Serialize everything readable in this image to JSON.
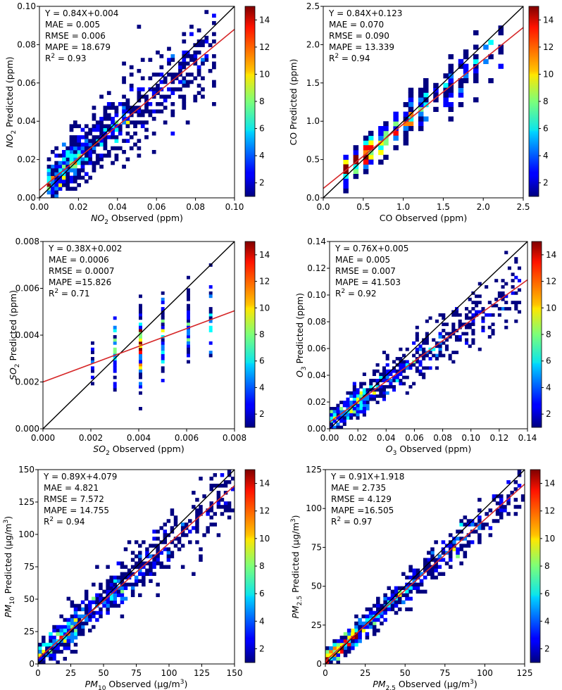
{
  "figure": {
    "colorbar": {
      "ticks": [
        2,
        4,
        6,
        8,
        10,
        12,
        14
      ],
      "min": 1,
      "max": 15,
      "colormap": "jet"
    },
    "colors": {
      "identity_line": "#000000",
      "fit_line": "#d62728",
      "frame": "#000000"
    }
  },
  "chart_data": [
    {
      "id": "no2",
      "type": "heatmap",
      "title": "",
      "xlabel": {
        "sym": "NO",
        "sub": "2",
        "rest": " Observed (ppm)"
      },
      "ylabel": {
        "sym": "NO",
        "sub": "2",
        "rest": " Predicted (ppm)"
      },
      "xlim": [
        0,
        0.1
      ],
      "ylim": [
        0,
        0.1
      ],
      "xticks": [
        "0.00",
        "0.02",
        "0.04",
        "0.06",
        "0.08",
        "0.10"
      ],
      "yticks": [
        "0.00",
        "0.02",
        "0.04",
        "0.06",
        "0.08",
        "0.10"
      ],
      "fit": {
        "slope": 0.84,
        "intercept": 0.004
      },
      "stats": [
        "Y = 0.84X+0.004",
        "MAE = 0.005",
        "RMSE = 0.006",
        "MAPE = 18.679",
        "R2 = 0.93"
      ],
      "density": {
        "x_range": [
          0.005,
          0.09
        ],
        "spread": 0.009,
        "count": 700,
        "bins": 52,
        "peak_x": 0.02
      }
    },
    {
      "id": "co",
      "type": "heatmap",
      "title": "",
      "xlabel": {
        "sym": "",
        "sub": "",
        "rest": "CO Observed (ppm)"
      },
      "ylabel": {
        "sym": "",
        "sub": "",
        "rest": "CO Predicted (ppm)"
      },
      "xlim": [
        0,
        2.5
      ],
      "ylim": [
        0,
        2.5
      ],
      "xticks": [
        "0.0",
        "0.5",
        "1.0",
        "1.5",
        "2.0",
        "2.5"
      ],
      "yticks": [
        "0.0",
        "0.5",
        "1.0",
        "1.5",
        "2.0",
        "2.5"
      ],
      "fit": {
        "slope": 0.84,
        "intercept": 0.123
      },
      "stats": [
        "Y = 0.84X+0.123",
        "MAE = 0.070",
        "RMSE = 0.090",
        "MAPE = 13.339",
        "R2 = 0.94"
      ],
      "density": {
        "x_range": [
          0.25,
          2.2
        ],
        "spread": 0.12,
        "count": 380,
        "bins": 40,
        "peak_x": 0.6,
        "discrete_x": 0.1
      }
    },
    {
      "id": "so2",
      "type": "heatmap",
      "title": "",
      "xlabel": {
        "sym": "SO",
        "sub": "2",
        "rest": " Observed (ppm)"
      },
      "ylabel": {
        "sym": "SO",
        "sub": "2",
        "rest": " Predicted (ppm)"
      },
      "xlim": [
        0,
        0.008
      ],
      "ylim": [
        0,
        0.008
      ],
      "xticks": [
        "0.000",
        "0.002",
        "0.004",
        "0.006",
        "0.008"
      ],
      "yticks": [
        "0.000",
        "0.002",
        "0.004",
        "0.006",
        "0.008"
      ],
      "fit": {
        "slope": 0.38,
        "intercept": 0.002
      },
      "stats": [
        "Y = 0.38X+0.002",
        "MAE = 0.0006",
        "RMSE = 0.0007",
        "MAPE =15.826",
        "R2 = 0.71"
      ],
      "density": {
        "x_range": [
          0.002,
          0.008
        ],
        "spread": 0.0007,
        "count": 300,
        "bins": 60,
        "peak_x": 0.004,
        "discrete_x": 0.001
      }
    },
    {
      "id": "o3",
      "type": "heatmap",
      "title": "",
      "xlabel": {
        "sym": "O",
        "sub": "3",
        "rest": " Observed (ppm)"
      },
      "ylabel": {
        "sym": "O",
        "sub": "3",
        "rest": " Predicted (ppm)"
      },
      "xlim": [
        0,
        0.14
      ],
      "ylim": [
        0,
        0.14
      ],
      "xticks": [
        "0.00",
        "0.02",
        "0.04",
        "0.06",
        "0.08",
        "0.10",
        "0.12",
        "0.14"
      ],
      "yticks": [
        "0.00",
        "0.02",
        "0.04",
        "0.06",
        "0.08",
        "0.10",
        "0.12",
        "0.14"
      ],
      "fit": {
        "slope": 0.76,
        "intercept": 0.005
      },
      "stats": [
        "Y = 0.76X+0.005",
        "MAE = 0.005",
        "RMSE = 0.007",
        "MAPE = 41.503",
        "R2 = 0.92"
      ],
      "density": {
        "x_range": [
          0.002,
          0.135
        ],
        "spread": 0.008,
        "count": 650,
        "bins": 60,
        "peak_x": 0.025
      }
    },
    {
      "id": "pm10",
      "type": "heatmap",
      "title": "",
      "xlabel": {
        "sym": "PM",
        "sub": "10",
        "rest": " Observed (μg/m",
        "sup": "3",
        "close": ")"
      },
      "ylabel": {
        "sym": "PM",
        "sub": "10",
        "rest": " Predicted (μg/m",
        "sup": "3",
        "close": ")"
      },
      "xlim": [
        0,
        150
      ],
      "ylim": [
        0,
        150
      ],
      "xticks": [
        "0",
        "25",
        "50",
        "75",
        "100",
        "125",
        "150"
      ],
      "yticks": [
        "0",
        "25",
        "50",
        "75",
        "100",
        "125",
        "150"
      ],
      "fit": {
        "slope": 0.89,
        "intercept": 4.079
      },
      "stats": [
        "Y = 0.89X+4.079",
        "MAE = 4.821",
        "RMSE = 7.572",
        "MAPE = 14.755",
        "R2 = 0.94"
      ],
      "density": {
        "x_range": [
          2,
          148
        ],
        "spread": 9,
        "count": 650,
        "bins": 55,
        "peak_x": 30
      }
    },
    {
      "id": "pm25",
      "type": "heatmap",
      "title": "",
      "xlabel": {
        "sym": "PM",
        "sub": "2.5",
        "rest": " Observed (μg/m",
        "sup": "3",
        "close": ")"
      },
      "ylabel": {
        "sym": "PM",
        "sub": "2.5",
        "rest": " Predicted (μg/m",
        "sup": "3",
        "close": ")"
      },
      "xlim": [
        0,
        125
      ],
      "ylim": [
        0,
        125
      ],
      "xticks": [
        "0",
        "25",
        "50",
        "75",
        "100",
        "125"
      ],
      "yticks": [
        "0",
        "25",
        "50",
        "75",
        "100",
        "125"
      ],
      "fit": {
        "slope": 0.91,
        "intercept": 1.918
      },
      "stats": [
        "Y = 0.91X+1.918",
        "MAE = 2.735",
        "RMSE = 4.129",
        "MAPE =16.505",
        "R2 = 0.97"
      ],
      "density": {
        "x_range": [
          2,
          124
        ],
        "spread": 5,
        "count": 650,
        "bins": 55,
        "peak_x": 20
      }
    }
  ]
}
